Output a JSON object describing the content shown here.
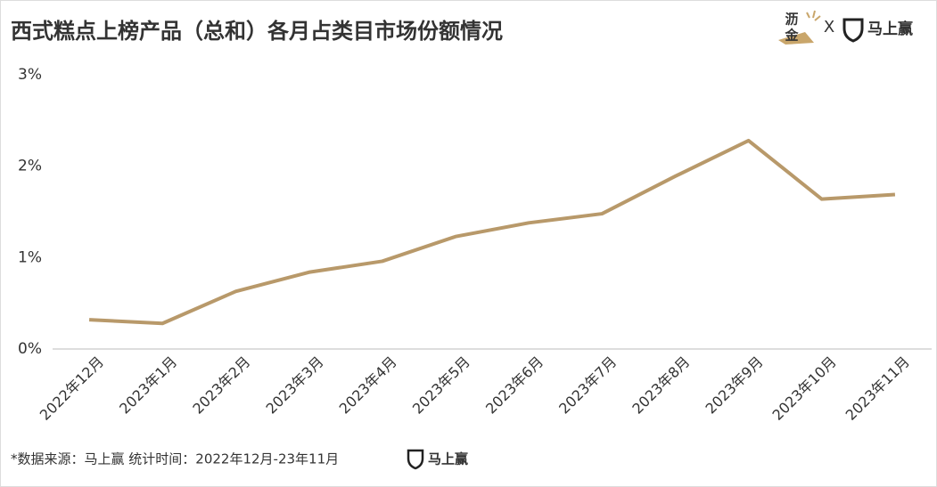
{
  "chart_data": {
    "type": "line",
    "title": "西式糕点上榜产品（总和）各月占类目市场份额情况",
    "categories": [
      "2022年12月",
      "2023年1月",
      "2023年2月",
      "2023年3月",
      "2023年4月",
      "2023年5月",
      "2023年6月",
      "2023年7月",
      "2023年8月",
      "2023年9月",
      "2023年10月",
      "2023年11月"
    ],
    "values": [
      0.32,
      0.28,
      0.63,
      0.84,
      0.96,
      1.23,
      1.38,
      1.48,
      1.89,
      2.28,
      1.64,
      1.69
    ],
    "color": "#b8996a",
    "ylim": [
      0,
      3
    ],
    "yticks": [
      {
        "value": 0,
        "label": "0%"
      },
      {
        "value": 1,
        "label": "1%"
      },
      {
        "value": 2,
        "label": "2%"
      },
      {
        "value": 3,
        "label": "3%"
      }
    ],
    "grid": false
  },
  "branding": {
    "partner": [
      "沥",
      "金"
    ],
    "separator": "X",
    "brand": "马上赢"
  },
  "footer": {
    "source": "*数据来源：马上赢  统计时间：2022年12月-23年11月",
    "brand": "马上赢"
  }
}
